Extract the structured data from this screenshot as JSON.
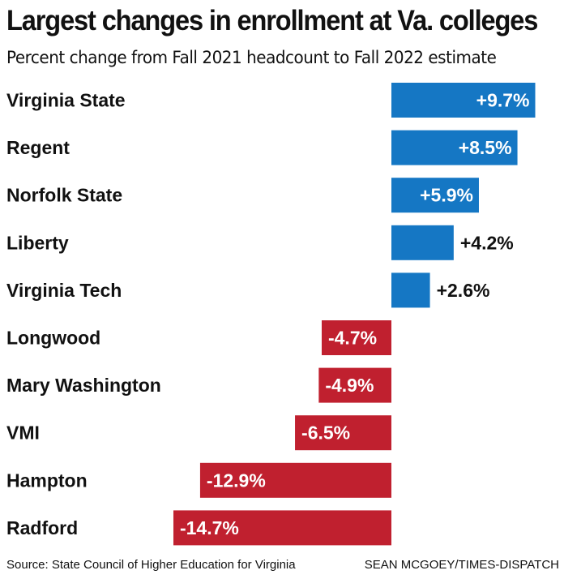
{
  "title": "Largest changes in enrollment at Va. colleges",
  "subtitle": "Percent change from Fall 2021 headcount to Fall 2022 estimate",
  "source": "Source: State Council of Higher Education  for Virginia",
  "credit": "SEAN MCGOEY/TIMES-DISPATCH",
  "colors": {
    "positive": "#1577c4",
    "negative": "#c0202f"
  },
  "chart_data": {
    "type": "bar",
    "orientation": "horizontal",
    "categories": [
      "Virginia State",
      "Regent",
      "Norfolk State",
      "Liberty",
      "Virginia Tech",
      "Longwood",
      "Mary Washington",
      "VMI",
      "Hampton",
      "Radford"
    ],
    "values": [
      9.7,
      8.5,
      5.9,
      4.2,
      2.6,
      -4.7,
      -4.9,
      -6.5,
      -12.9,
      -14.7
    ],
    "value_labels": [
      "+9.7%",
      "+8.5%",
      "+5.9%",
      "+4.2%",
      "+2.6%",
      "-4.7%",
      "-4.9%",
      "-6.5%",
      "-12.9%",
      "-14.7%"
    ],
    "title": "Largest changes in enrollment at Va. colleges",
    "xlabel": "",
    "ylabel": "",
    "xlim": [
      -14.7,
      9.7
    ],
    "grid": false
  }
}
